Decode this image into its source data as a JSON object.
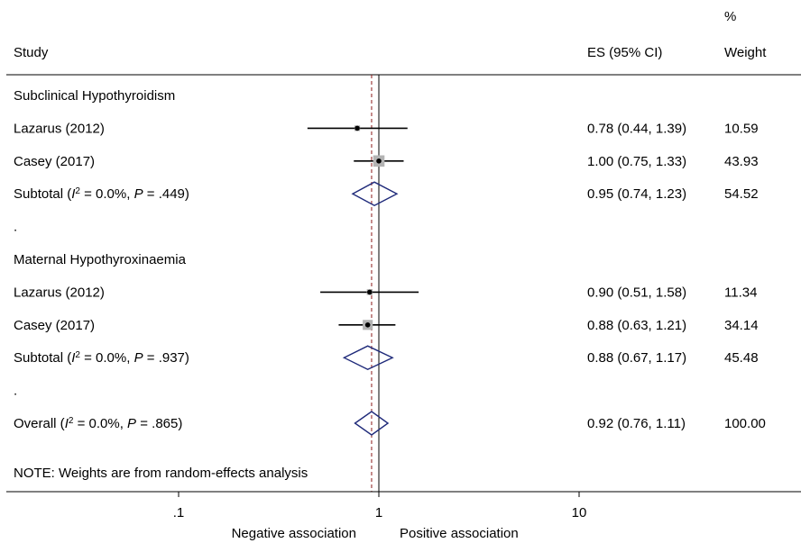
{
  "header": {
    "study_label": "Study",
    "es_label": "ES (95% CI)",
    "weight_pct_label": "%",
    "weight_label": "Weight"
  },
  "footer": {
    "note": "NOTE: Weights are from random-effects analysis",
    "negative_label": "Negative association",
    "positive_label": "Positive association"
  },
  "chart_data": {
    "type": "forest",
    "x_scale": "log",
    "x_ticks": [
      {
        "value": 0.1,
        "label": ".1"
      },
      {
        "value": 1,
        "label": "1"
      },
      {
        "value": 10,
        "label": "10"
      }
    ],
    "xlim": [
      0.1,
      10
    ],
    "null_line": 1,
    "overall_line": 0.92,
    "rows": [
      {
        "kind": "group",
        "label": "Subclinical Hypothyroidism"
      },
      {
        "kind": "study",
        "label": "Lazarus (2012)",
        "es": 0.78,
        "lo": 0.44,
        "hi": 1.39,
        "weight": 10.59,
        "es_text": "0.78 (0.44, 1.39)",
        "weight_text": "10.59"
      },
      {
        "kind": "study",
        "label": "Casey (2017)",
        "es": 1.0,
        "lo": 0.75,
        "hi": 1.33,
        "weight": 43.93,
        "es_text": "1.00 (0.75, 1.33)",
        "weight_text": "43.93"
      },
      {
        "kind": "subtotal",
        "label": "Subtotal",
        "stat": "0.0%",
        "p": ".449",
        "es": 0.95,
        "lo": 0.74,
        "hi": 1.23,
        "weight": 54.52,
        "es_text": "0.95 (0.74, 1.23)",
        "weight_text": "54.52"
      },
      {
        "kind": "dot",
        "label": "."
      },
      {
        "kind": "group",
        "label": "Maternal Hypothyroxinaemia"
      },
      {
        "kind": "study",
        "label": "Lazarus (2012)",
        "es": 0.9,
        "lo": 0.51,
        "hi": 1.58,
        "weight": 11.34,
        "es_text": "0.90 (0.51, 1.58)",
        "weight_text": "11.34"
      },
      {
        "kind": "study",
        "label": "Casey (2017)",
        "es": 0.88,
        "lo": 0.63,
        "hi": 1.21,
        "weight": 34.14,
        "es_text": "0.88 (0.63, 1.21)",
        "weight_text": "34.14"
      },
      {
        "kind": "subtotal",
        "label": "Subtotal",
        "stat": "0.0%",
        "p": ".937",
        "es": 0.88,
        "lo": 0.67,
        "hi": 1.17,
        "weight": 45.48,
        "es_text": "0.88 (0.67, 1.17)",
        "weight_text": "45.48"
      },
      {
        "kind": "dot",
        "label": "."
      },
      {
        "kind": "overall",
        "label": "Overall",
        "stat": "0.0%",
        "p": ".865",
        "es": 0.92,
        "lo": 0.76,
        "hi": 1.11,
        "weight": 100.0,
        "es_text": "0.92 (0.76, 1.11)",
        "weight_text": "100.00"
      }
    ],
    "colors": {
      "marker": "#000000",
      "weight_box": "#b3b3b3",
      "diamond": "#1f2a7a",
      "overall_line": "#8b1a1a",
      "axis": "#000000"
    }
  }
}
